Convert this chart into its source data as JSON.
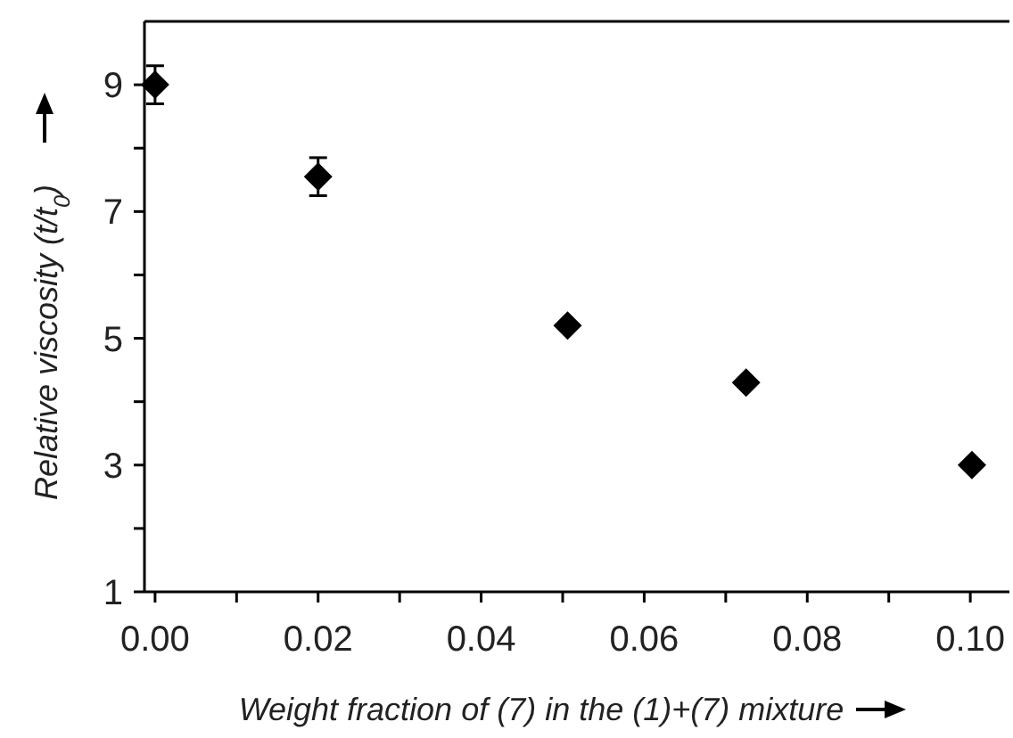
{
  "chart_data": {
    "type": "scatter",
    "xlabel": "Weight fraction of (7) in the (1)+(7) mixture",
    "ylabel": "Relative viscosity (t/t$_{0}$)",
    "x": [
      0,
      0.02,
      0.0506,
      0.0725,
      0.1002
    ],
    "values": [
      9.0,
      7.55,
      5.2,
      4.3,
      3.0
    ],
    "errors": [
      0.3,
      0.3,
      null,
      null,
      null
    ],
    "color": "#000000",
    "marker": "diamond",
    "xlim": [
      -0.0013,
      0.1048
    ],
    "xticks": [
      {
        "value": 0,
        "label": "0.00"
      },
      {
        "value": 0.01,
        "label": null
      },
      {
        "value": 0.02,
        "label": "0.02"
      },
      {
        "value": 0.03,
        "label": null
      },
      {
        "value": 0.04,
        "label": "0.04"
      },
      {
        "value": 0.05,
        "label": null
      },
      {
        "value": 0.06,
        "label": "0.06"
      },
      {
        "value": 0.07,
        "label": null
      },
      {
        "value": 0.08,
        "label": "0.08"
      },
      {
        "value": 0.09,
        "label": null
      },
      {
        "value": 0.1,
        "label": "0.10"
      }
    ],
    "ylim": [
      1,
      10
    ],
    "yticks": [
      1,
      {
        "value": 2,
        "label": null
      },
      3,
      {
        "value": 4,
        "label": null
      },
      5,
      {
        "value": 6,
        "label": null
      },
      7,
      {
        "value": 8,
        "label": null
      },
      9
    ],
    "grid": false
  }
}
